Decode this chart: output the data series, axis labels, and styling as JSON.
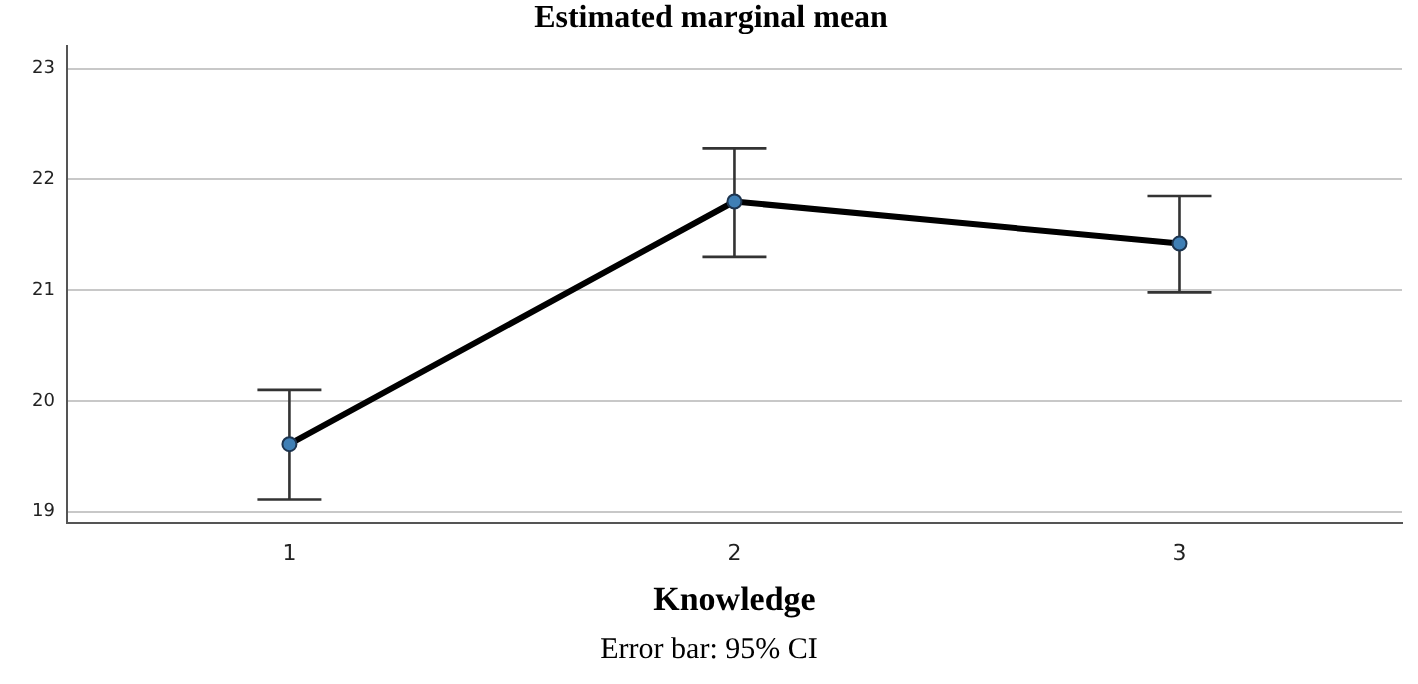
{
  "chart_data": {
    "type": "line",
    "title": "Estimated marginal mean",
    "xlabel": "Knowledge",
    "categories": [
      "1",
      "2",
      "3"
    ],
    "series": [
      {
        "color": "#000000",
        "values": [
          19.61,
          21.8,
          21.42
        ],
        "errors": [
          [
            19.11,
            20.1
          ],
          [
            21.3,
            22.28
          ],
          [
            20.98,
            21.85
          ]
        ]
      }
    ],
    "ylim": [
      18.9,
      23.2
    ],
    "yticks": [
      19,
      20,
      21,
      22,
      23
    ],
    "grid": "y",
    "marker": "circle",
    "legend": false,
    "annotations": [
      "Error bar: 95% CI"
    ]
  }
}
